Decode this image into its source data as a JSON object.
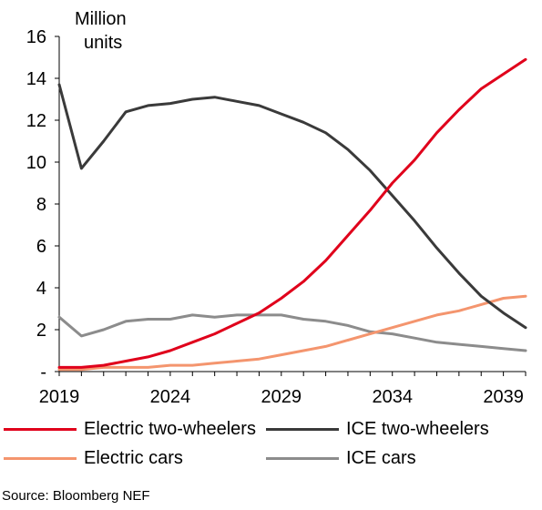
{
  "chart_data": {
    "type": "line",
    "ylabel": "Million units",
    "ylabel_lines": [
      "Million",
      "units"
    ],
    "x_ticks": [
      "2019",
      "2024",
      "2029",
      "2034",
      "2039"
    ],
    "y_ticks": [
      "-",
      "2",
      "4",
      "6",
      "8",
      "10",
      "12",
      "14",
      "16"
    ],
    "xlim": [
      2019,
      2040
    ],
    "ylim": [
      0,
      16
    ],
    "grid": false,
    "legend_position": "bottom",
    "x": [
      2019,
      2020,
      2021,
      2022,
      2023,
      2024,
      2025,
      2026,
      2027,
      2028,
      2029,
      2030,
      2031,
      2032,
      2033,
      2034,
      2035,
      2036,
      2037,
      2038,
      2039,
      2040
    ],
    "series": [
      {
        "name": "Electric two-wheelers",
        "color": "#e0001b",
        "values": [
          0.2,
          0.2,
          0.3,
          0.5,
          0.7,
          1.0,
          1.4,
          1.8,
          2.3,
          2.8,
          3.5,
          4.3,
          5.3,
          6.5,
          7.7,
          9.0,
          10.1,
          11.4,
          12.5,
          13.5,
          14.2,
          14.9
        ]
      },
      {
        "name": "ICE two-wheelers",
        "color": "#3a3a3a",
        "values": [
          13.7,
          9.7,
          11.0,
          12.4,
          12.7,
          12.8,
          13.0,
          13.1,
          12.9,
          12.7,
          12.3,
          11.9,
          11.4,
          10.6,
          9.6,
          8.4,
          7.2,
          5.9,
          4.7,
          3.6,
          2.8,
          2.1
        ]
      },
      {
        "name": "Electric cars",
        "color": "#f4956e",
        "values": [
          0.1,
          0.1,
          0.2,
          0.2,
          0.2,
          0.3,
          0.3,
          0.4,
          0.5,
          0.6,
          0.8,
          1.0,
          1.2,
          1.5,
          1.8,
          2.1,
          2.4,
          2.7,
          2.9,
          3.2,
          3.5,
          3.6
        ]
      },
      {
        "name": "ICE cars",
        "color": "#8c8c8c",
        "values": [
          2.6,
          1.7,
          2.0,
          2.4,
          2.5,
          2.5,
          2.7,
          2.6,
          2.7,
          2.7,
          2.7,
          2.5,
          2.4,
          2.2,
          1.9,
          1.8,
          1.6,
          1.4,
          1.3,
          1.2,
          1.1,
          1.0
        ]
      }
    ]
  },
  "source": "Source: Bloomberg NEF"
}
